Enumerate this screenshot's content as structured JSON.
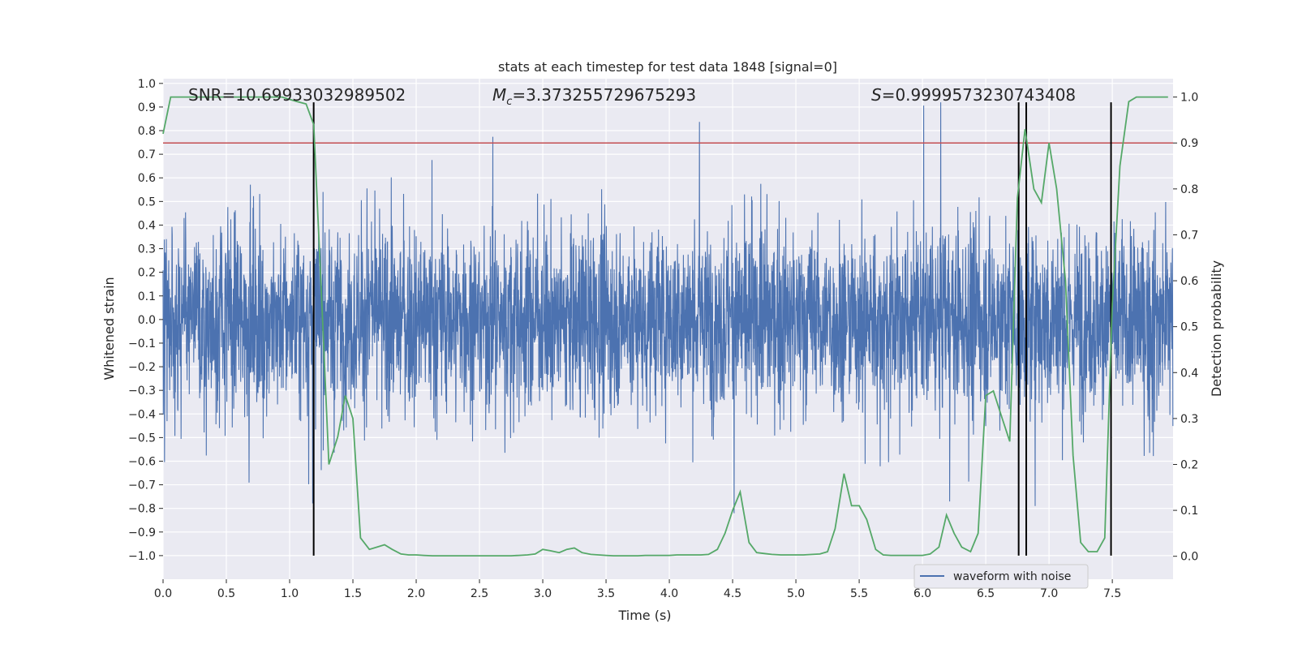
{
  "chart_data": {
    "type": "line",
    "title": "stats at each timestep for test data 1848 [signal=0]",
    "xlabel": "Time (s)",
    "ylabel_left": "Whitened strain",
    "ylabel_right": "Detection probability",
    "xlim": [
      0.0,
      7.98
    ],
    "ylim_left": [
      -1.1,
      1.02
    ],
    "ylim_right": [
      -0.05,
      1.04
    ],
    "x_ticks": [
      0.0,
      0.5,
      1.0,
      1.5,
      2.0,
      2.5,
      3.0,
      3.5,
      4.0,
      4.5,
      5.0,
      5.5,
      6.0,
      6.5,
      7.0,
      7.5
    ],
    "x_tick_labels": [
      "0.0",
      "0.5",
      "1.0",
      "1.5",
      "2.0",
      "2.5",
      "3.0",
      "3.5",
      "4.0",
      "4.5",
      "5.0",
      "5.5",
      "6.0",
      "6.5",
      "7.0",
      "7.5"
    ],
    "y_left_ticks": [
      1.0,
      0.9,
      0.8,
      0.7,
      0.6,
      0.5,
      0.4,
      0.3,
      0.2,
      0.1,
      0.0,
      -0.1,
      -0.2,
      -0.3,
      -0.4,
      -0.5,
      -0.6,
      -0.7,
      -0.8,
      -0.9,
      -1.0
    ],
    "y_left_tick_labels": [
      "1.0",
      "0.9",
      "0.8",
      "0.7",
      "0.6",
      "0.5",
      "0.4",
      "0.3",
      "0.2",
      "0.1",
      "0.0",
      "−0.1",
      "−0.2",
      "−0.3",
      "−0.4",
      "−0.5",
      "−0.6",
      "−0.7",
      "−0.8",
      "−0.9",
      "−1.0"
    ],
    "y_right_ticks": [
      1.0,
      0.9,
      0.8,
      0.7,
      0.6,
      0.5,
      0.4,
      0.3,
      0.2,
      0.1,
      0.0
    ],
    "y_right_tick_labels": [
      "1.0",
      "0.9",
      "0.8",
      "0.7",
      "0.6",
      "0.5",
      "0.4",
      "0.3",
      "0.2",
      "0.1",
      "0.0"
    ],
    "annotations": {
      "snr": "SNR=10.69933032989502",
      "mc_symbol": "M",
      "mc_sub": "c",
      "mc_value": "=3.373255729675293",
      "s_symbol": "S",
      "s_value": "=0.9999573230743408"
    },
    "legend": {
      "label": "waveform with noise",
      "placement": "bottom-right"
    },
    "threshold_line": {
      "axis": "right",
      "value": 0.9,
      "color": "#c44e52"
    },
    "vertical_lines": [
      1.19,
      6.76,
      6.82,
      7.49
    ],
    "vertical_line_range_left": [
      -1.0,
      0.92
    ],
    "waveform": {
      "name": "waveform with noise",
      "color": "#4c72b0",
      "sample_rate_hz": 512,
      "duration_s": 7.98,
      "approx_envelope": [
        -1.0,
        0.92
      ],
      "axis": "left"
    },
    "series": [
      {
        "name": "detection probability",
        "axis": "right",
        "color": "#55a868",
        "x": [
          0.0,
          0.06,
          0.13,
          0.19,
          0.25,
          0.31,
          0.38,
          0.44,
          0.5,
          0.56,
          0.63,
          0.69,
          0.75,
          0.81,
          0.88,
          0.94,
          1.0,
          1.06,
          1.13,
          1.19,
          1.25,
          1.31,
          1.38,
          1.44,
          1.5,
          1.56,
          1.63,
          1.69,
          1.75,
          1.81,
          1.88,
          1.94,
          2.0,
          2.06,
          2.13,
          2.19,
          2.25,
          2.31,
          2.38,
          2.44,
          2.5,
          2.56,
          2.63,
          2.69,
          2.75,
          2.81,
          2.88,
          2.94,
          3.0,
          3.06,
          3.13,
          3.19,
          3.25,
          3.31,
          3.38,
          3.44,
          3.5,
          3.56,
          3.63,
          3.69,
          3.75,
          3.81,
          3.88,
          3.94,
          4.0,
          4.06,
          4.13,
          4.19,
          4.25,
          4.31,
          4.38,
          4.44,
          4.5,
          4.56,
          4.63,
          4.69,
          4.75,
          4.81,
          4.88,
          4.94,
          5.0,
          5.06,
          5.13,
          5.19,
          5.25,
          5.31,
          5.38,
          5.44,
          5.5,
          5.56,
          5.63,
          5.69,
          5.75,
          5.81,
          5.88,
          5.94,
          6.0,
          6.06,
          6.13,
          6.19,
          6.25,
          6.31,
          6.38,
          6.44,
          6.5,
          6.56,
          6.63,
          6.69,
          6.75,
          6.81,
          6.88,
          6.94,
          7.0,
          7.06,
          7.13,
          7.19,
          7.25,
          7.31,
          7.38,
          7.44,
          7.5,
          7.56,
          7.63,
          7.69,
          7.75,
          7.81,
          7.88,
          7.94
        ],
        "y": [
          0.92,
          1.0,
          1.0,
          1.0,
          1.0,
          1.0,
          1.0,
          1.0,
          1.0,
          1.0,
          1.0,
          1.0,
          1.0,
          1.0,
          1.0,
          1.0,
          0.995,
          0.99,
          0.985,
          0.94,
          0.58,
          0.2,
          0.26,
          0.35,
          0.3,
          0.04,
          0.015,
          0.02,
          0.025,
          0.015,
          0.005,
          0.003,
          0.003,
          0.002,
          0.001,
          0.001,
          0.001,
          0.001,
          0.001,
          0.001,
          0.001,
          0.001,
          0.001,
          0.001,
          0.001,
          0.002,
          0.003,
          0.005,
          0.015,
          0.012,
          0.008,
          0.015,
          0.018,
          0.008,
          0.004,
          0.003,
          0.002,
          0.001,
          0.001,
          0.001,
          0.001,
          0.002,
          0.002,
          0.002,
          0.002,
          0.003,
          0.003,
          0.003,
          0.003,
          0.004,
          0.015,
          0.05,
          0.1,
          0.14,
          0.03,
          0.008,
          0.006,
          0.004,
          0.003,
          0.003,
          0.003,
          0.003,
          0.004,
          0.005,
          0.01,
          0.06,
          0.18,
          0.11,
          0.11,
          0.08,
          0.015,
          0.003,
          0.002,
          0.002,
          0.002,
          0.002,
          0.002,
          0.005,
          0.02,
          0.09,
          0.05,
          0.02,
          0.01,
          0.05,
          0.35,
          0.36,
          0.3,
          0.25,
          0.78,
          0.93,
          0.8,
          0.77,
          0.9,
          0.8,
          0.6,
          0.22,
          0.03,
          0.01,
          0.01,
          0.04,
          0.55,
          0.85,
          0.99,
          1.0,
          1.0,
          1.0,
          1.0,
          1.0
        ]
      }
    ]
  }
}
